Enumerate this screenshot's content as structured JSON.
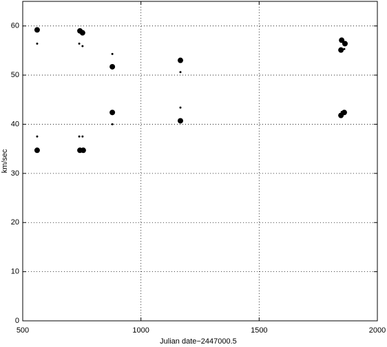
{
  "chart_data": {
    "type": "scatter",
    "xlabel": "Julian date−2447000.5",
    "ylabel": "km/sec",
    "xlim": [
      500,
      2000
    ],
    "xticks": [
      500,
      1000,
      1500,
      2000
    ],
    "ylim": [
      0,
      65
    ],
    "yticks": [
      0,
      10,
      20,
      30,
      40,
      50,
      60
    ],
    "grid": true,
    "series": [
      {
        "color": "#000000",
        "marker_size": 4,
        "x": [
          561,
          561,
          742,
          753,
          742,
          756,
          879,
          879,
          1167,
          1167,
          1849,
          1863,
          1846,
          1846,
          1860
        ],
        "values": [
          59.2,
          34.7,
          59.0,
          58.6,
          34.7,
          34.7,
          51.7,
          42.4,
          53.0,
          40.7,
          57.1,
          56.4,
          55.1,
          41.8,
          42.4
        ]
      },
      {
        "color": "#000000",
        "marker_size": 1.5,
        "x": [
          561,
          561,
          739,
          753,
          739,
          753,
          879,
          879,
          1167,
          1167,
          1860,
          1849
        ],
        "values": [
          56.4,
          37.5,
          56.4,
          55.9,
          37.5,
          37.5,
          54.3,
          40.0,
          50.6,
          43.4,
          55.3,
          42.5
        ]
      }
    ]
  }
}
